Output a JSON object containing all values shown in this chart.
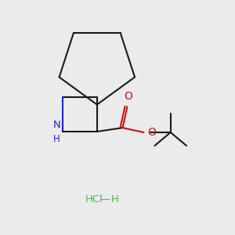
{
  "bg_color": "#ebebeb",
  "bond_color": "#1a1a1a",
  "nh_color": "#2222cc",
  "ester_color": "#cc1111",
  "hcl_color": "#44bb44",
  "line_width": 1.5,
  "figsize": [
    3.0,
    3.0
  ],
  "dpi": 100,
  "hcl_text": "HCl",
  "h_text": "H",
  "n_text": "N",
  "hh_text": "H",
  "o1_text": "O",
  "o2_text": "O"
}
